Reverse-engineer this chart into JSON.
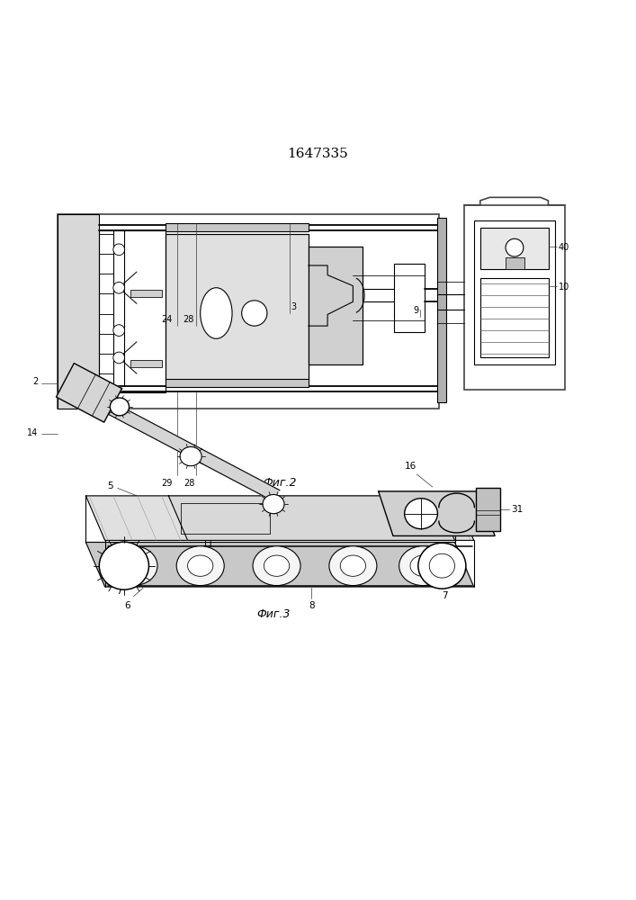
{
  "title": "1647335",
  "fig2_label": "Фиг.2",
  "fig3_label": "Фиг.3",
  "bg_color": "#ffffff",
  "line_color": "#000000",
  "line_width": 0.8
}
